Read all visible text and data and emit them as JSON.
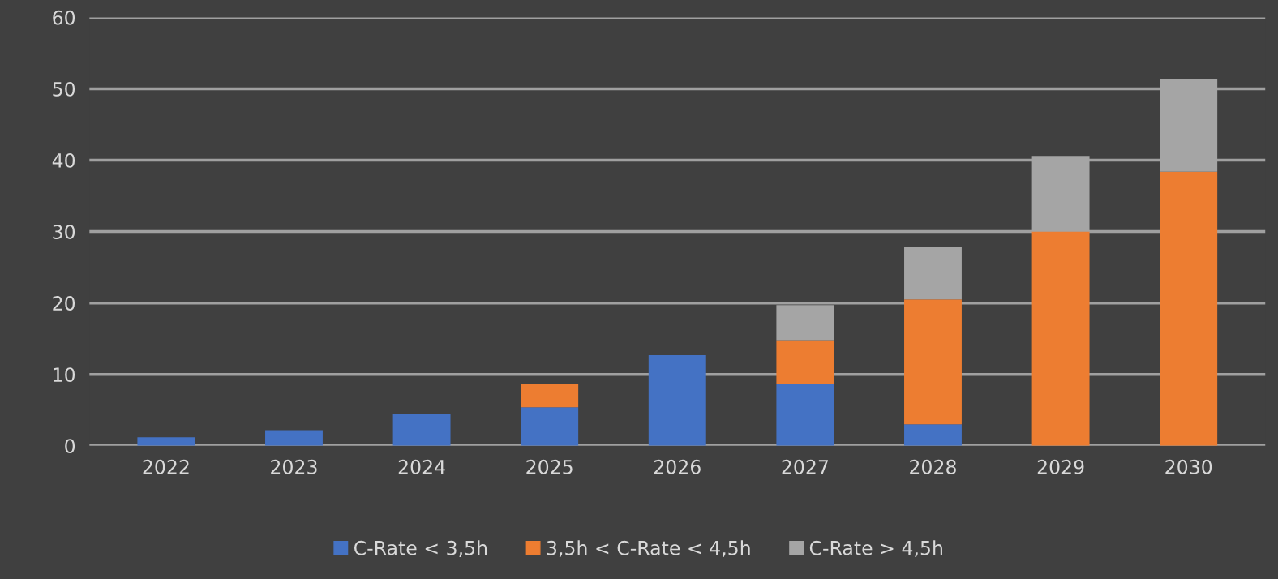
{
  "chart_data": {
    "type": "bar",
    "stacked": true,
    "categories": [
      "2022",
      "2023",
      "2024",
      "2025",
      "2026",
      "2027",
      "2028",
      "2029",
      "2030"
    ],
    "series": [
      {
        "name": "C-Rate < 3,5h",
        "color": "#4472c4",
        "values": [
          1.2,
          2.2,
          4.4,
          5.4,
          12.7,
          8.6,
          3.0,
          0,
          0
        ]
      },
      {
        "name": "3,5h < C-Rate < 4,5h",
        "color": "#ed7d31",
        "values": [
          0,
          0,
          0,
          3.2,
          0,
          6.2,
          17.5,
          30.0,
          38.4
        ]
      },
      {
        "name": "C-Rate > 4,5h",
        "color": "#a5a5a5",
        "values": [
          0,
          0,
          0,
          0,
          0,
          4.9,
          7.3,
          10.6,
          13.0
        ]
      }
    ],
    "ylim": [
      0,
      60
    ],
    "yticks": [
      0,
      10,
      20,
      30,
      40,
      50,
      60
    ],
    "grid": "y",
    "legend": "bottom"
  }
}
